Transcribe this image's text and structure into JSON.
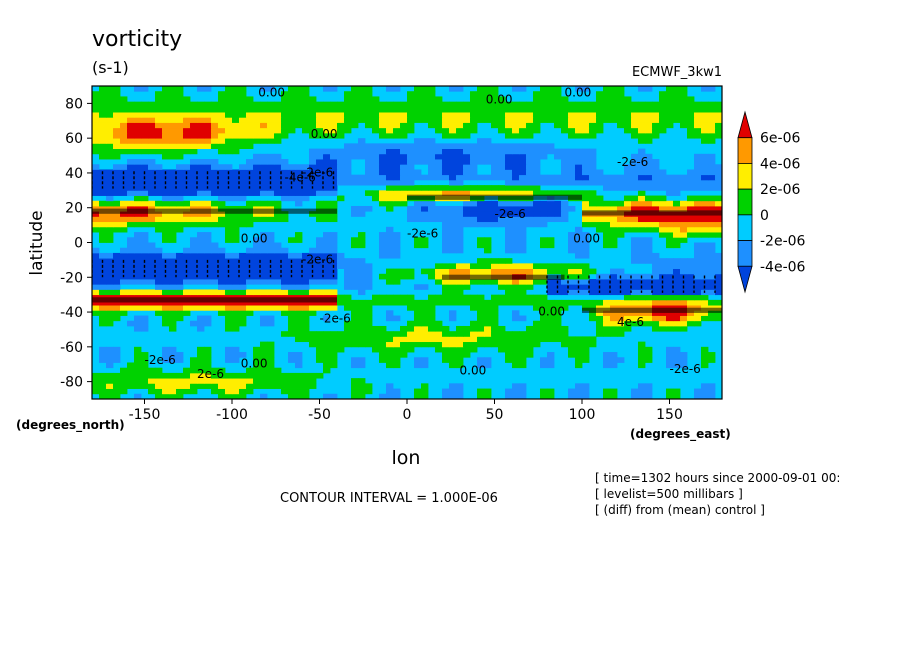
{
  "chart_data": {
    "type": "heatmap",
    "title": "vorticity",
    "subtitle": "(s-1)",
    "source_label": "ECMWF_3kw1",
    "xlabel": "lon",
    "ylabel": "latitude",
    "x_units": "(degrees_east)",
    "y_units": "(degrees_north)",
    "xlim": [
      -180,
      180
    ],
    "ylim": [
      -90,
      90
    ],
    "x_ticks": [
      "-150",
      "-100",
      "-50",
      "0",
      "50",
      "100",
      "150"
    ],
    "x_tick_values": [
      -150,
      -100,
      -50,
      0,
      50,
      100,
      150
    ],
    "y_ticks": [
      "-80",
      "-60",
      "-40",
      "-20",
      "0",
      "20",
      "40",
      "60",
      "80"
    ],
    "y_tick_values": [
      -80,
      -60,
      -40,
      -20,
      0,
      20,
      40,
      60,
      80
    ],
    "colorbar": {
      "labels": [
        "6e-06",
        "4e-06",
        "2e-06",
        "0",
        "-2e-06",
        "-4e-06"
      ],
      "colors": [
        "#e00000",
        "#ff9900",
        "#ffee00",
        "#00d200",
        "#00ccff",
        "#1e90ff",
        "#0044dd"
      ]
    },
    "contour_labels": [
      "0.00",
      "-2e-6",
      "-4e-6",
      "2e-6",
      "4e-6"
    ],
    "contour_interval_text": "CONTOUR INTERVAL = 1.000E-06",
    "info_lines": [
      "[ time=1302 hours since 2000-09-01 00:",
      "[ levelist=500 millibars ]",
      "[ (diff) from (mean) control ]"
    ]
  }
}
